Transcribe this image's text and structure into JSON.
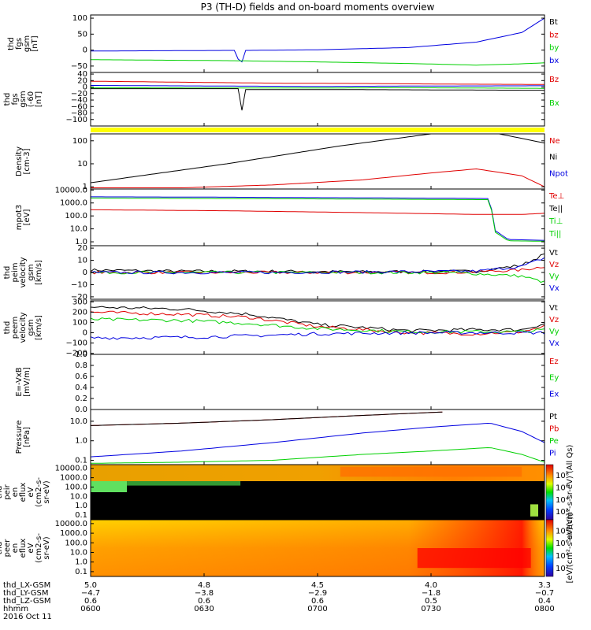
{
  "title": "P3 (TH-D) fields and on-board moments overview",
  "colors": {
    "black": "#000000",
    "red": "#e00000",
    "green": "#00d000",
    "blue": "#0000e0",
    "yellow": "#ffff00",
    "gray": "#444444"
  },
  "chart_data": [
    {
      "id": "panel_bt",
      "type": "line",
      "ylabel": [
        "thd",
        "fgs",
        "gsm",
        "[nT]"
      ],
      "ylim": [
        -70,
        110
      ],
      "yticks": [
        100,
        50,
        0,
        -50
      ],
      "ytick_labels": [
        "100",
        "50",
        "0",
        "−50"
      ],
      "legend": [
        {
          "name": "Bt",
          "color": "#000000"
        },
        {
          "name": "bz",
          "color": "#e00000"
        },
        {
          "name": "by",
          "color": "#00d000"
        },
        {
          "name": "bx",
          "color": "#0000e0"
        }
      ],
      "series": [
        {
          "name": "bz (blue trace)",
          "color": "#0000e0",
          "x": [
            0,
            0.3,
            0.32,
            0.33,
            0.34,
            0.5,
            0.7,
            0.85,
            0.95,
            1
          ],
          "y": [
            -3,
            -1,
            -1,
            -55,
            -1,
            1,
            8,
            25,
            55,
            100
          ]
        },
        {
          "name": "by (green trace)",
          "color": "#00d000",
          "x": [
            0,
            0.3,
            0.5,
            0.7,
            0.85,
            0.95,
            1
          ],
          "y": [
            -30,
            -33,
            -37,
            -42,
            -47,
            -43,
            -40
          ]
        }
      ]
    },
    {
      "id": "panel_bgsm",
      "type": "line",
      "ylabel": [
        "thd",
        "fgs",
        "gsm",
        "(-60",
        "[nT]"
      ],
      "ylim": [
        -120,
        45
      ],
      "yticks": [
        40,
        20,
        0,
        -20,
        -40,
        -60,
        -80,
        -100
      ],
      "ytick_labels": [
        "40",
        "20",
        "0",
        "−20",
        "−40",
        "−60",
        "−80",
        "−100"
      ],
      "legend": [
        {
          "name": "Bz",
          "color": "#e00000"
        },
        {
          "name": "Bx",
          "color": "#00d000"
        }
      ],
      "series": [
        {
          "name": "Bz",
          "color": "#e00000",
          "x": [
            0,
            0.2,
            0.4,
            0.6,
            0.8,
            1
          ],
          "y": [
            18,
            15,
            12,
            11,
            9,
            8
          ]
        },
        {
          "name": "By",
          "color": "#0000e0",
          "x": [
            0,
            0.3,
            0.5,
            0.7,
            1
          ],
          "y": [
            5,
            3,
            2,
            3,
            4
          ]
        },
        {
          "name": "Bx",
          "color": "#00d000",
          "x": [
            0,
            0.3,
            0.5,
            0.7,
            1
          ],
          "y": [
            -2,
            -3,
            -3,
            -2,
            -4
          ]
        },
        {
          "name": "Bt",
          "color": "#000000",
          "x": [
            0,
            0.33,
            0.335,
            0.34,
            0.6,
            1
          ],
          "y": [
            -5,
            -5,
            -105,
            -8,
            -8,
            -10
          ]
        }
      ]
    },
    {
      "id": "panel_density",
      "type": "line",
      "yscale": "log",
      "ylabel": [
        "Density",
        "[cm-3]"
      ],
      "ylim": [
        0.8,
        200
      ],
      "yticks": [
        100,
        10,
        1
      ],
      "ytick_labels": [
        "100",
        "10",
        "1"
      ],
      "legend": [
        {
          "name": "Ne",
          "color": "#e00000"
        },
        {
          "name": "Ni",
          "color": "#000000"
        },
        {
          "name": "Npot",
          "color": "#0000e0"
        }
      ],
      "series": [
        {
          "name": "Ni",
          "color": "#000000",
          "x": [
            0,
            0.3,
            0.55,
            0.75,
            0.85,
            0.9,
            1
          ],
          "y": [
            1.5,
            10,
            60,
            200,
            200,
            200,
            80
          ]
        },
        {
          "name": "Ne",
          "color": "#e00000",
          "x": [
            0,
            0.2,
            0.4,
            0.6,
            0.75,
            0.85,
            0.95,
            1
          ],
          "y": [
            0.9,
            0.9,
            1.2,
            2,
            4,
            6,
            3,
            1
          ]
        }
      ]
    },
    {
      "id": "panel_temp",
      "type": "line",
      "yscale": "log",
      "ylabel": [
        "mpot3",
        "[eV]"
      ],
      "ylim": [
        0.5,
        12000
      ],
      "yticks": [
        10000,
        1000,
        100,
        10,
        1
      ],
      "ytick_labels": [
        "10000.0",
        "1000.0",
        "100.0",
        "10.0",
        "1.0"
      ],
      "legend": [
        {
          "name": "Te⊥",
          "color": "#e00000"
        },
        {
          "name": "Te||",
          "color": "#000000"
        },
        {
          "name": "Ti⊥",
          "color": "#00d000"
        },
        {
          "name": "Ti||",
          "color": "#00d000"
        }
      ],
      "series": [
        {
          "name": "Ti",
          "color": "#0000e0",
          "x": [
            0,
            0.3,
            0.6,
            0.88,
            0.89,
            0.92,
            1
          ],
          "y": [
            3000,
            2800,
            2500,
            2200,
            8,
            1.5,
            1.3
          ]
        },
        {
          "name": "Ti||",
          "color": "#00d000",
          "x": [
            0,
            0.3,
            0.6,
            0.88,
            0.89,
            0.92,
            1
          ],
          "y": [
            2400,
            2200,
            2000,
            1800,
            6,
            1.2,
            1.1
          ]
        },
        {
          "name": "Te",
          "color": "#e00000",
          "x": [
            0,
            0.3,
            0.6,
            0.85,
            0.95,
            1
          ],
          "y": [
            300,
            250,
            180,
            130,
            130,
            160
          ]
        }
      ]
    },
    {
      "id": "panel_vi",
      "type": "line",
      "ylabel": [
        "thd",
        "peim",
        "velocity",
        "gsm",
        "[km/s]"
      ],
      "ylim": [
        -22,
        22
      ],
      "yticks": [
        20,
        10,
        0,
        -10,
        -20
      ],
      "ytick_labels": [
        "20",
        "10",
        "0",
        "−10",
        "−20"
      ],
      "legend": [
        {
          "name": "Vt",
          "color": "#000000"
        },
        {
          "name": "Vz",
          "color": "#e00000"
        },
        {
          "name": "Vy",
          "color": "#00d000"
        },
        {
          "name": "Vx",
          "color": "#0000e0"
        }
      ],
      "series": [
        {
          "name": "Vt",
          "color": "#000000",
          "x": [
            0,
            0.2,
            0.4,
            0.6,
            0.85,
            0.95,
            1
          ],
          "y": [
            2,
            1,
            1,
            0.5,
            1,
            6,
            15
          ]
        },
        {
          "name": "Vz",
          "color": "#e00000",
          "x": [
            0,
            0.4,
            0.8,
            0.95,
            1
          ],
          "y": [
            0,
            0,
            0,
            2,
            5
          ]
        },
        {
          "name": "Vy",
          "color": "#00d000",
          "x": [
            0,
            0.4,
            0.8,
            0.95,
            1
          ],
          "y": [
            0,
            0,
            0,
            -3,
            -8
          ]
        },
        {
          "name": "Vx",
          "color": "#0000e0",
          "x": [
            0,
            0.4,
            0.85,
            0.95,
            1
          ],
          "y": [
            0,
            0,
            1,
            5,
            12
          ]
        }
      ]
    },
    {
      "id": "panel_ve",
      "type": "line",
      "ylabel": [
        "thd",
        "peem",
        "velocity",
        "gsm",
        "[km/s]"
      ],
      "ylim": [
        -210,
        310
      ],
      "yticks": [
        300,
        200,
        100,
        0,
        -100,
        -200
      ],
      "ytick_labels": [
        "300",
        "200",
        "100",
        "0",
        "−100",
        "−200"
      ],
      "legend": [
        {
          "name": "Vt",
          "color": "#000000"
        },
        {
          "name": "Vz",
          "color": "#e00000"
        },
        {
          "name": "Vy",
          "color": "#00d000"
        },
        {
          "name": "Vx",
          "color": "#0000e0"
        }
      ],
      "series": [
        {
          "name": "Vt",
          "color": "#000000",
          "x": [
            0,
            0.2,
            0.35,
            0.5,
            0.7,
            0.85,
            0.95,
            1
          ],
          "y": [
            250,
            230,
            180,
            80,
            20,
            30,
            30,
            90
          ]
        },
        {
          "name": "Vz",
          "color": "#e00000",
          "x": [
            0,
            0.2,
            0.35,
            0.5,
            0.7,
            0.85,
            0.95,
            1
          ],
          "y": [
            200,
            180,
            150,
            60,
            0,
            -10,
            10,
            60
          ]
        },
        {
          "name": "Vy",
          "color": "#00d000",
          "x": [
            0,
            0.2,
            0.35,
            0.5,
            0.7,
            0.85,
            0.95,
            1
          ],
          "y": [
            130,
            120,
            90,
            40,
            10,
            10,
            10,
            30
          ]
        },
        {
          "name": "Vx",
          "color": "#0000e0",
          "x": [
            0,
            0.2,
            0.35,
            0.5,
            0.7,
            1
          ],
          "y": [
            -50,
            -45,
            -30,
            -10,
            0,
            0
          ]
        }
      ]
    },
    {
      "id": "panel_efield",
      "type": "line",
      "ylabel": [
        "E=-VxB",
        "[mV/m]"
      ],
      "ylim": [
        0,
        1
      ],
      "yticks": [
        1.0,
        0.8,
        0.6,
        0.4,
        0.2,
        0.0
      ],
      "ytick_labels": [
        "1.0",
        "0.8",
        "0.6",
        "0.4",
        "0.2",
        "0.0"
      ],
      "legend": [
        {
          "name": "Ez",
          "color": "#e00000"
        },
        {
          "name": "Ey",
          "color": "#00d000"
        },
        {
          "name": "Ex",
          "color": "#0000e0"
        }
      ],
      "series": []
    },
    {
      "id": "panel_pressure",
      "type": "line",
      "yscale": "log",
      "ylabel": [
        "Pressure",
        "[nPa]"
      ],
      "ylim": [
        0.06,
        40
      ],
      "yticks": [
        10,
        1,
        0.1
      ],
      "ytick_labels": [
        "10.0",
        "1.0",
        "0.1"
      ],
      "legend": [
        {
          "name": "Pt",
          "color": "#000000"
        },
        {
          "name": "Pb",
          "color": "#e00000"
        },
        {
          "name": "Pe",
          "color": "#00d000"
        },
        {
          "name": "Pi",
          "color": "#0000e0"
        }
      ],
      "series": [
        {
          "name": "Pb",
          "color": "#e00000",
          "x": [
            0,
            0.2,
            0.4,
            0.6,
            0.78
          ],
          "y": [
            6,
            8,
            12,
            20,
            30
          ]
        },
        {
          "name": "Pt",
          "color": "#000000",
          "x": [
            0,
            0.2,
            0.4,
            0.6,
            0.78
          ],
          "y": [
            6,
            8,
            12,
            20,
            30
          ]
        },
        {
          "name": "Pi",
          "color": "#0000e0",
          "x": [
            0,
            0.2,
            0.4,
            0.6,
            0.75,
            0.88,
            0.95,
            1
          ],
          "y": [
            0.15,
            0.3,
            0.8,
            2.5,
            5,
            8,
            3,
            0.8
          ]
        },
        {
          "name": "Pe",
          "color": "#00d000",
          "x": [
            0,
            0.2,
            0.4,
            0.6,
            0.75,
            0.88,
            0.95,
            1
          ],
          "y": [
            0.07,
            0.08,
            0.1,
            0.2,
            0.3,
            0.45,
            0.2,
            0.08
          ]
        }
      ]
    },
    {
      "id": "panel_ion_spec",
      "type": "heatmap",
      "ylabel": [
        "thd",
        "peir",
        "en",
        "eflux",
        "eV",
        "(cm2-s-",
        "sr-eV)"
      ],
      "yticks": [
        10000,
        1000,
        100,
        10,
        1,
        0.1
      ],
      "ytick_labels": [
        "10000.0",
        "1000.0",
        "100.0",
        "10.0",
        "1.0",
        "0.1"
      ],
      "colorbar_ticks": [
        "10⁸",
        "10⁶",
        "10⁴",
        "10²"
      ],
      "colorbar_label": "eV/(cm²-s-sr-eV) (All Qs)"
    },
    {
      "id": "panel_elec_spec",
      "type": "heatmap",
      "ylabel": [
        "thd",
        "peer",
        "en",
        "eflux",
        "eV",
        "(cm2-s-",
        "sr-eV)"
      ],
      "yticks": [
        10000,
        1000,
        100,
        10,
        1,
        0.1
      ],
      "ytick_labels": [
        "10000.0",
        "1000.0",
        "100.0",
        "10.0",
        "1.0",
        "0.1"
      ],
      "colorbar_ticks": [
        "10⁸",
        "10⁶",
        "10⁴",
        "10²"
      ],
      "colorbar_label": "[eV/(cm²-s-sr-eV)]"
    }
  ],
  "x_axis": {
    "rows": [
      {
        "label": "thd_LX-GSM",
        "values": [
          "5.0",
          "4.8",
          "4.5",
          "4.0",
          "3.3"
        ]
      },
      {
        "label": "thd_LY-GSM",
        "values": [
          "−4.7",
          "−3.8",
          "−2.9",
          "−1.8",
          "−0.7"
        ]
      },
      {
        "label": "thd_LZ-GSM",
        "values": [
          "0.6",
          "0.6",
          "0.6",
          "0.5",
          "0.4"
        ]
      },
      {
        "label": "hhmm",
        "values": [
          "0600",
          "0630",
          "0700",
          "0730",
          "0800"
        ]
      }
    ],
    "date": "2016 Oct 11"
  }
}
